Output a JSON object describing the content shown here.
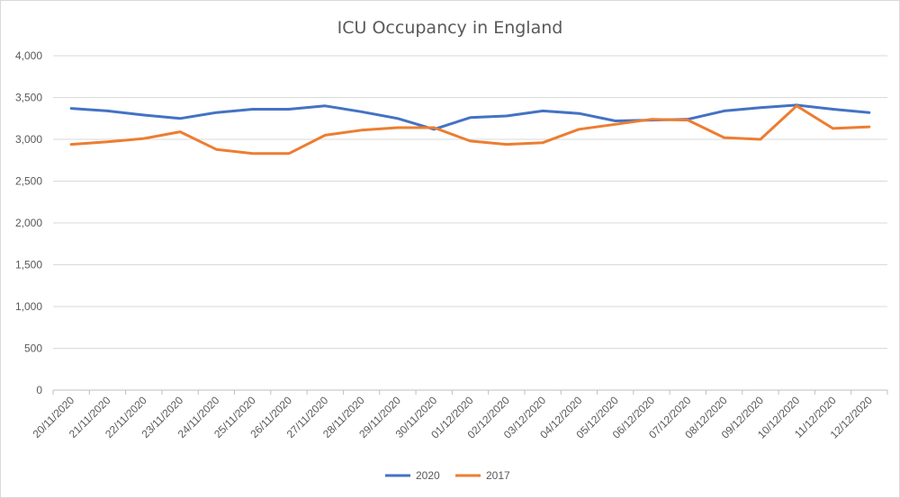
{
  "chart_data": {
    "type": "line",
    "title": "ICU Occupancy in England",
    "xlabel": "",
    "ylabel": "",
    "ylim": [
      0,
      4000
    ],
    "yticks": [
      0,
      500,
      1000,
      1500,
      2000,
      2500,
      3000,
      3500,
      4000
    ],
    "ytick_labels": [
      "0",
      "500",
      "1,000",
      "1,500",
      "2,000",
      "2,500",
      "3,000",
      "3,500",
      "4,000"
    ],
    "grid": "horizontal",
    "legend_position": "bottom",
    "categories": [
      "20/11/2020",
      "21/11/2020",
      "22/11/2020",
      "23/11/2020",
      "24/11/2020",
      "25/11/2020",
      "26/11/2020",
      "27/11/2020",
      "28/11/2020",
      "29/11/2020",
      "30/11/2020",
      "01/12/2020",
      "02/12/2020",
      "03/12/2020",
      "04/12/2020",
      "05/12/2020",
      "06/12/2020",
      "07/12/2020",
      "08/12/2020",
      "09/12/2020",
      "10/12/2020",
      "11/12/2020",
      "12/12/2020"
    ],
    "series": [
      {
        "name": "2020",
        "color": "#4472c4",
        "values": [
          3370,
          3340,
          3290,
          3250,
          3320,
          3360,
          3360,
          3400,
          3330,
          3250,
          3120,
          3260,
          3280,
          3340,
          3310,
          3220,
          3230,
          3240,
          3340,
          3380,
          3410,
          3360,
          3320
        ]
      },
      {
        "name": "2017",
        "color": "#ed7d31",
        "values": [
          2940,
          2970,
          3010,
          3090,
          2880,
          2830,
          2830,
          3050,
          3110,
          3140,
          3140,
          2980,
          2940,
          2960,
          3120,
          3180,
          3240,
          3230,
          3020,
          3000,
          3400,
          3130,
          3150
        ]
      }
    ]
  }
}
